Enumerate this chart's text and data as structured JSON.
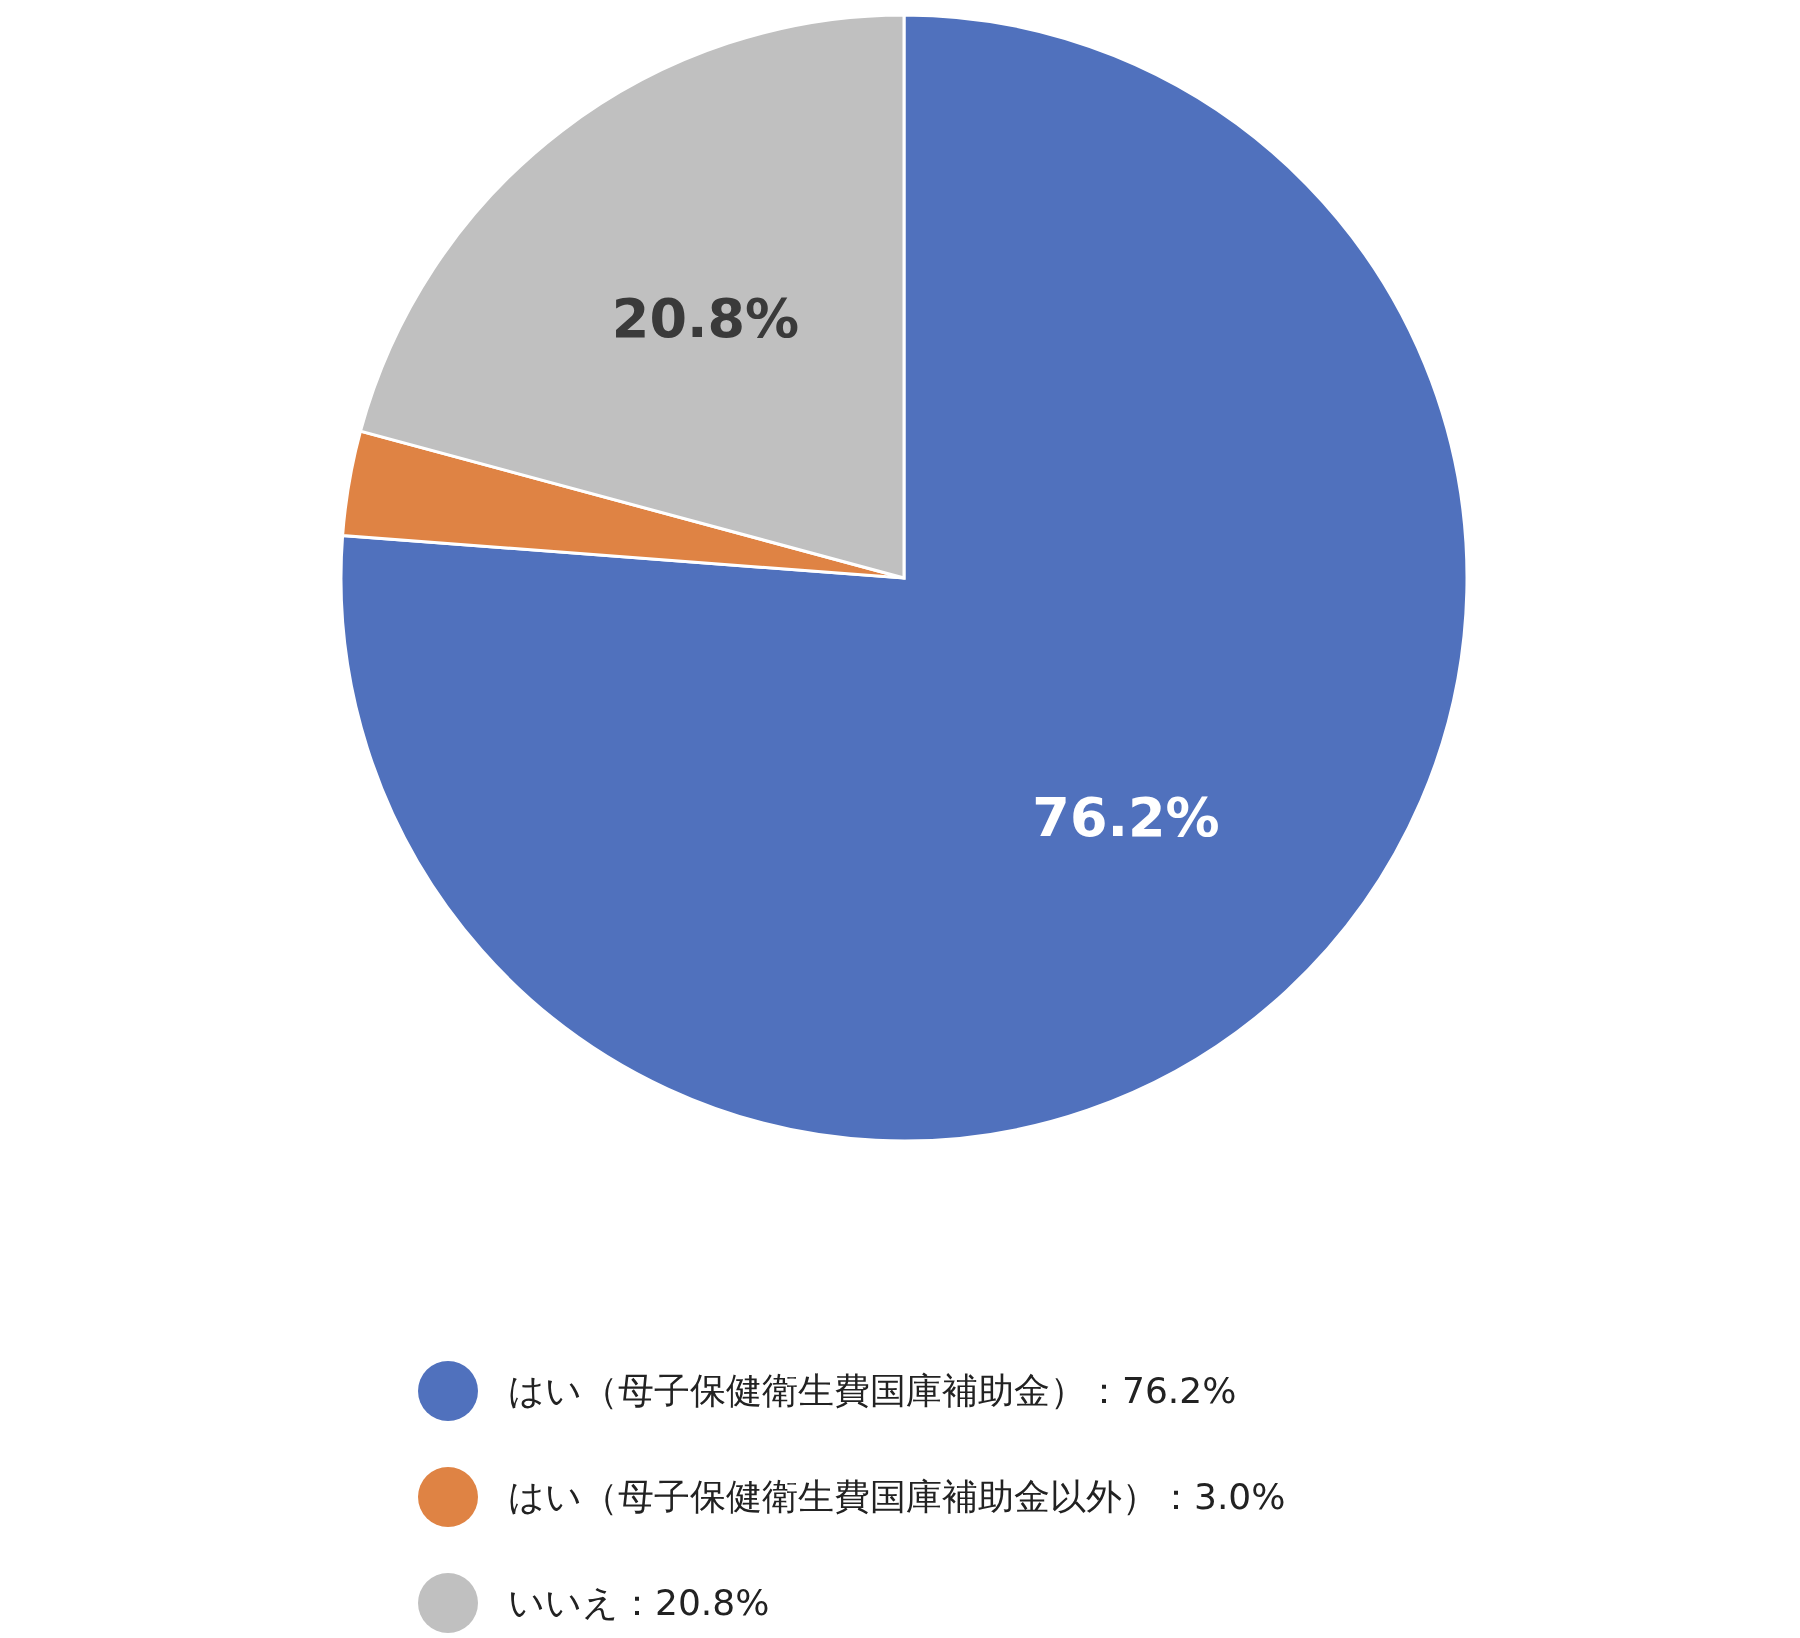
{
  "chart_data": {
    "type": "pie",
    "categories": [
      "はい（母子保健衛生費国庫補助金）：76.2%",
      "はい（母子保健衛生費国庫補助金以外）：3.0%",
      "いいえ：20.8%"
    ],
    "values": [
      76.2,
      3.0,
      20.8
    ],
    "colors": [
      "#5071bd",
      "#df8344",
      "#c0c0c0"
    ],
    "value_labels": [
      "76.2%",
      null,
      "20.8%"
    ],
    "legend": "bottom"
  }
}
